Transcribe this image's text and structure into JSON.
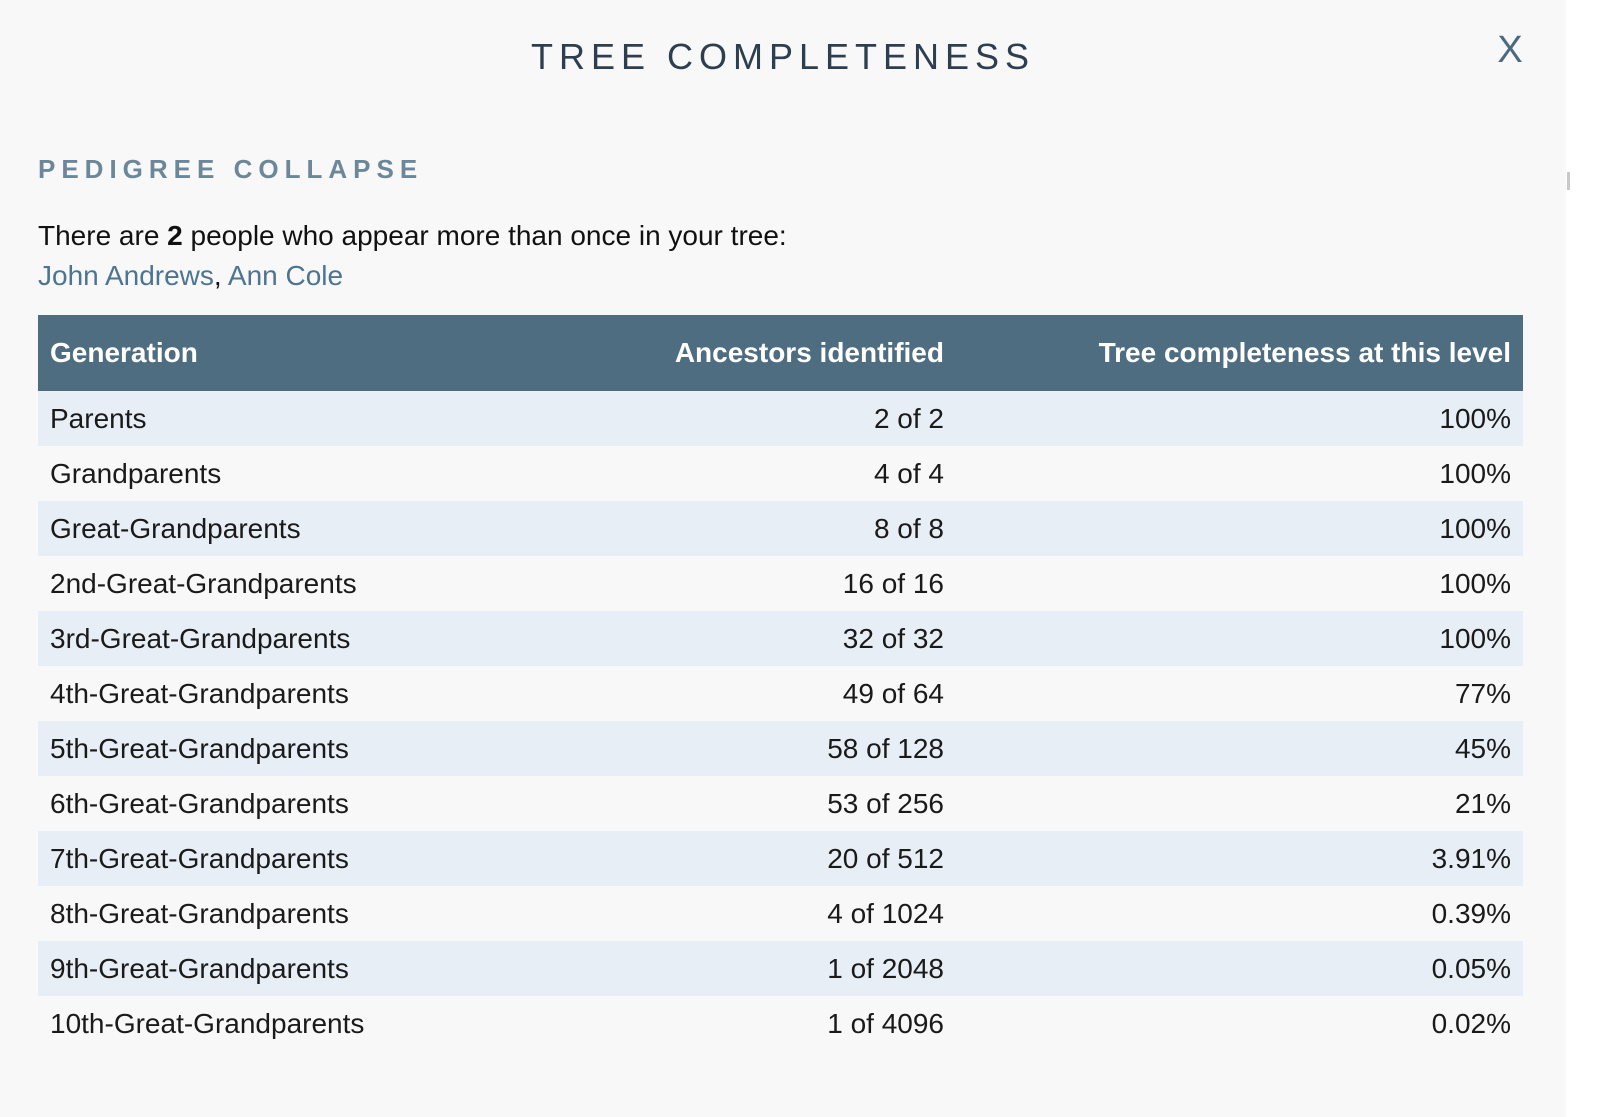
{
  "modal": {
    "title": "TREE COMPLETENESS",
    "close_label": "X"
  },
  "pedigree": {
    "section_title": "PEDIGREE COLLAPSE",
    "text_before": "There are ",
    "count": "2",
    "text_after": " people who appear more than once in your tree:",
    "people": [
      "John Andrews",
      "Ann Cole"
    ],
    "separator": ", "
  },
  "table": {
    "headers": [
      "Generation",
      "Ancestors identified",
      "Tree completeness at this level"
    ],
    "rows": [
      [
        "Parents",
        "2 of 2",
        "100%"
      ],
      [
        "Grandparents",
        "4 of 4",
        "100%"
      ],
      [
        "Great-Grandparents",
        "8 of 8",
        "100%"
      ],
      [
        "2nd-Great-Grandparents",
        "16 of 16",
        "100%"
      ],
      [
        "3rd-Great-Grandparents",
        "32 of 32",
        "100%"
      ],
      [
        "4th-Great-Grandparents",
        "49 of 64",
        "77%"
      ],
      [
        "5th-Great-Grandparents",
        "58 of 128",
        "45%"
      ],
      [
        "6th-Great-Grandparents",
        "53 of 256",
        "21%"
      ],
      [
        "7th-Great-Grandparents",
        "20 of 512",
        "3.91%"
      ],
      [
        "8th-Great-Grandparents",
        "4 of 1024",
        "0.39%"
      ],
      [
        "9th-Great-Grandparents",
        "1 of 2048",
        "0.05%"
      ],
      [
        "10th-Great-Grandparents",
        "1 of 4096",
        "0.02%"
      ]
    ]
  },
  "colors": {
    "header_bg": "#4e6d80",
    "row_alt_bg": "#e7eef6",
    "link": "#4d7490",
    "title": "#2d3e50"
  }
}
